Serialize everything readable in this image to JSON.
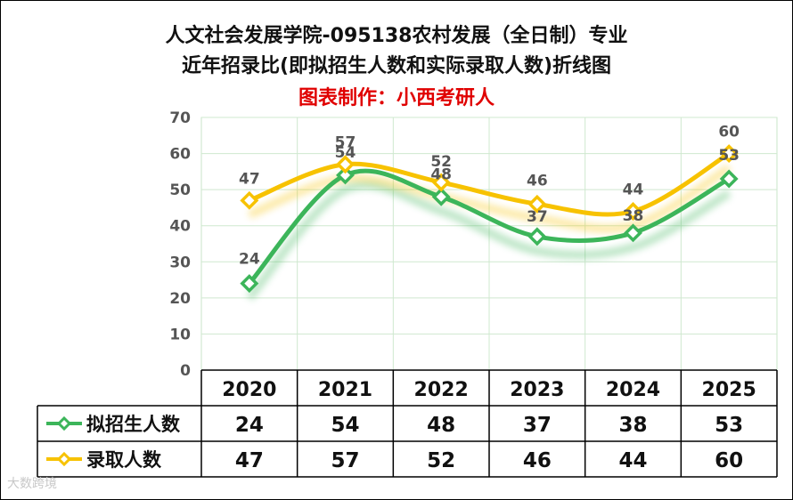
{
  "title_line1": "人文社会发展学院-095138农村发展（全日制）专业",
  "title_line2": "近年招录比(即拟招生人数和实际录取人数)折线图",
  "title_line3": "图表制作：小西考研人",
  "watermark": "大数跨境",
  "chart_data": {
    "type": "line",
    "categories": [
      "2020",
      "2021",
      "2022",
      "2023",
      "2024",
      "2025"
    ],
    "series": [
      {
        "name": "拟招生人数",
        "values": [
          24,
          54,
          48,
          37,
          38,
          53
        ],
        "color": "#3cb55a"
      },
      {
        "name": "录取人数",
        "values": [
          47,
          57,
          52,
          46,
          44,
          60
        ],
        "color": "#f7c200"
      }
    ],
    "ylim": [
      0,
      70
    ],
    "yticks": [
      0,
      10,
      20,
      30,
      40,
      50,
      60,
      70
    ],
    "grid": true,
    "legend": "bottom data table"
  }
}
